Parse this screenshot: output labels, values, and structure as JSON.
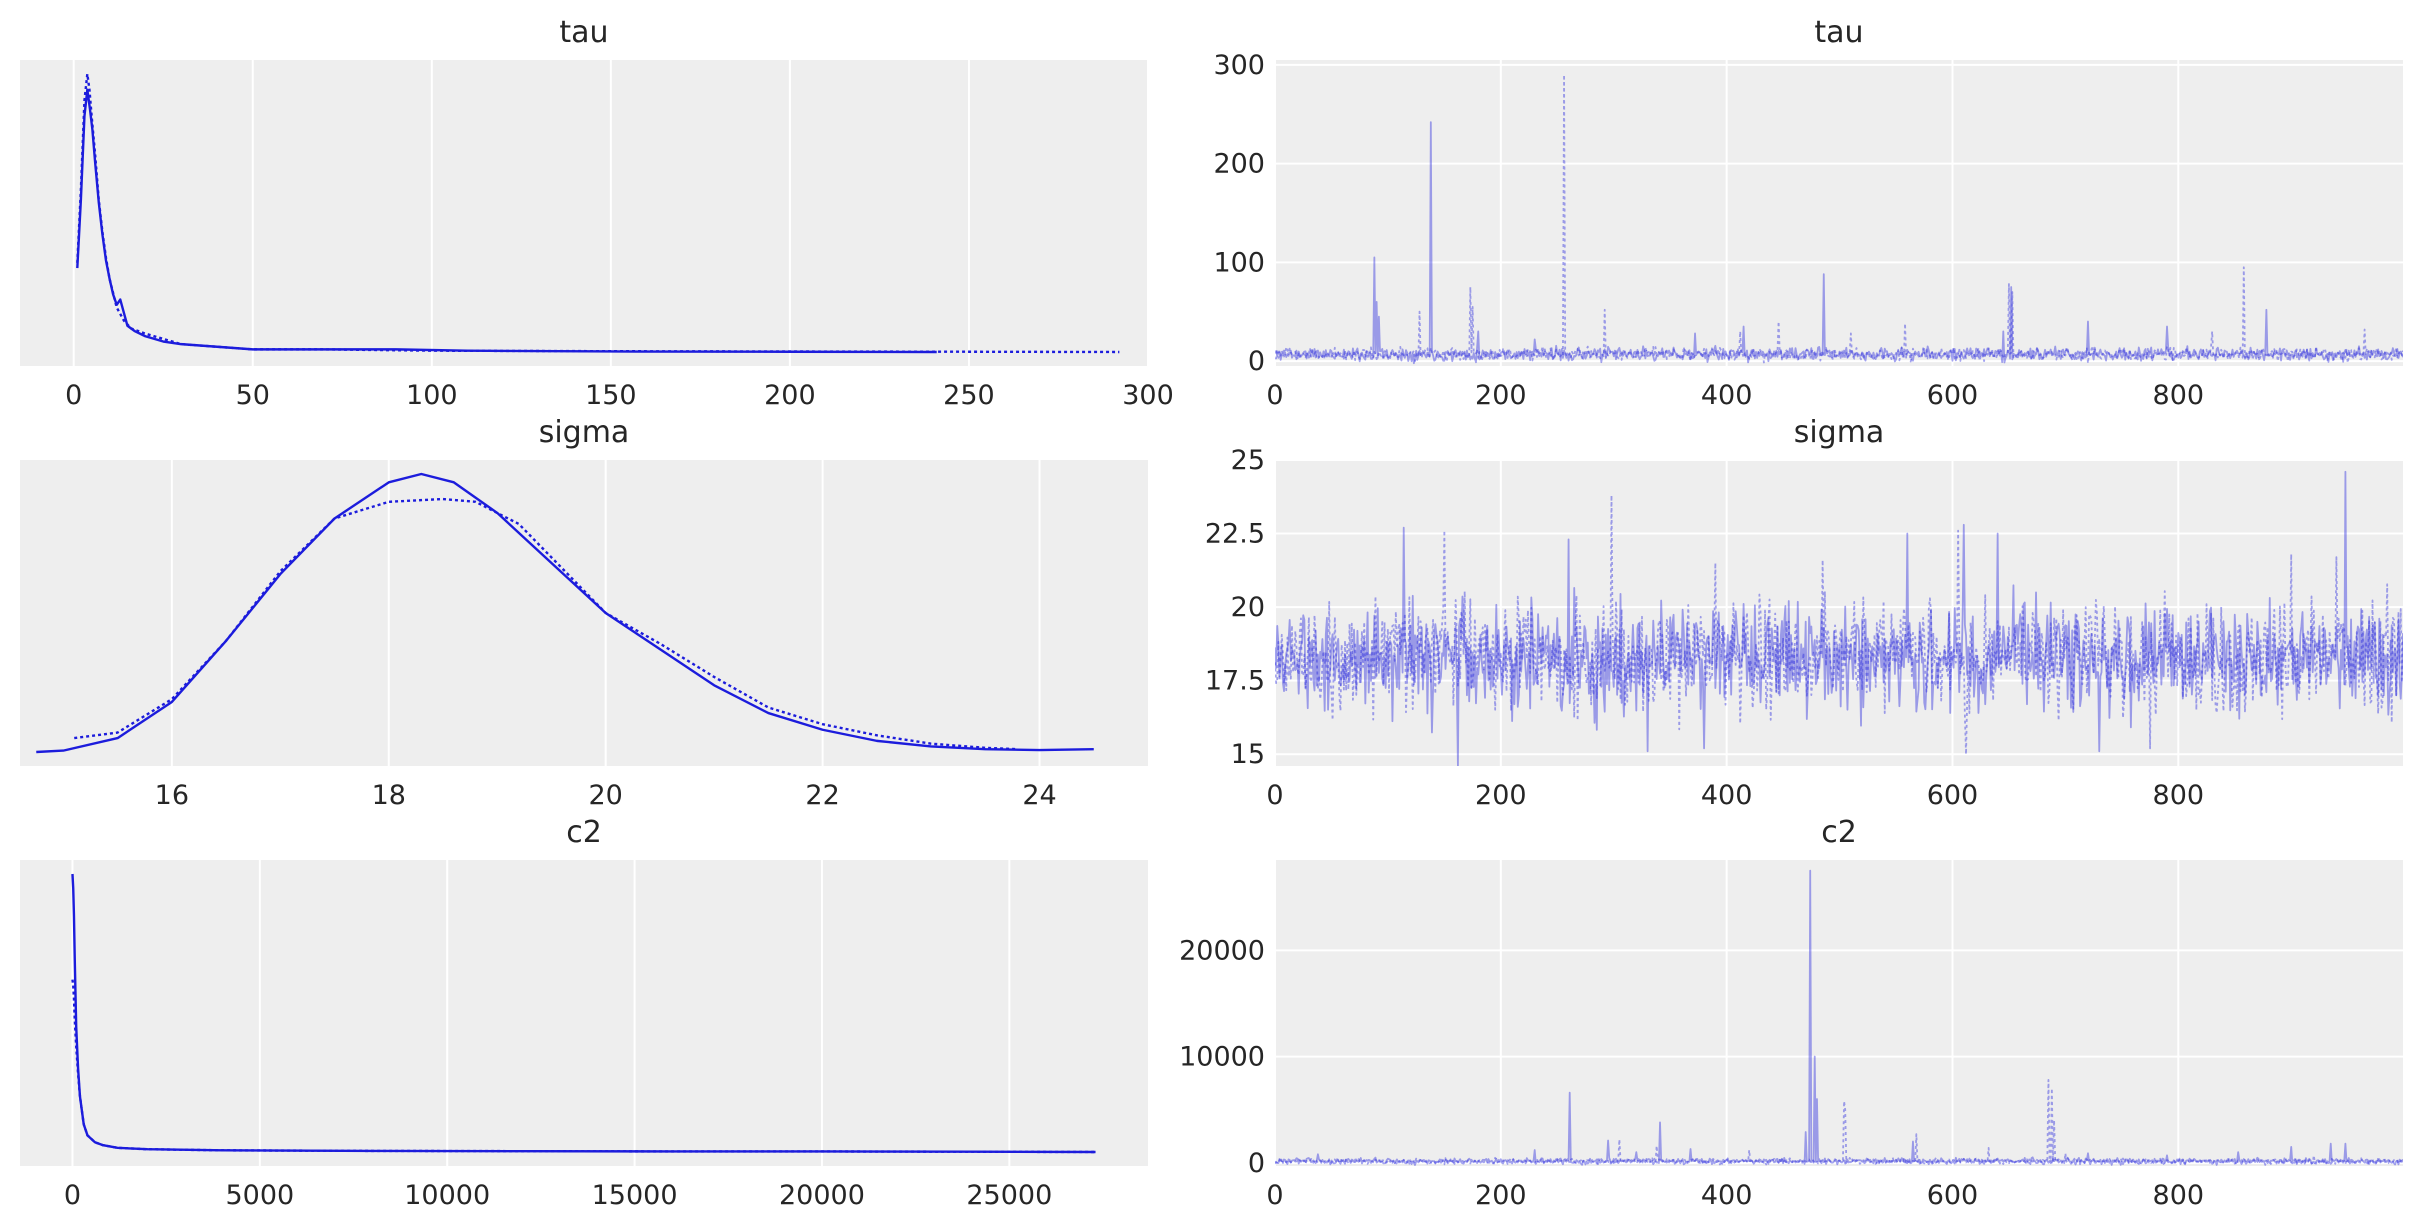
{
  "figure": {
    "type": "trace_plot",
    "color": "#1c1cdc",
    "trace_alpha": 0.4,
    "background": "#eeeeee"
  },
  "chart_data": [
    {
      "type": "line",
      "kind": "density",
      "title": "tau",
      "xlim": [
        -15,
        300
      ],
      "xticks": [
        0,
        50,
        100,
        150,
        200,
        250,
        300
      ],
      "yrange": [
        0,
        1
      ],
      "show_yticks": false,
      "grid": true,
      "series": [
        {
          "style": "solid",
          "x": [
            1,
            2,
            3,
            3.8,
            4.5,
            5.2,
            6,
            7,
            8,
            9,
            10,
            11,
            12,
            13,
            14,
            15,
            17,
            20,
            25,
            30,
            40,
            50,
            70,
            90,
            110,
            150,
            200,
            241
          ],
          "y": [
            0.32,
            0.58,
            0.9,
            1.0,
            0.93,
            0.85,
            0.72,
            0.57,
            0.45,
            0.35,
            0.28,
            0.22,
            0.18,
            0.2,
            0.15,
            0.1,
            0.08,
            0.06,
            0.04,
            0.03,
            0.02,
            0.01,
            0.01,
            0.01,
            0.005,
            0.002,
            0.001,
            0.0
          ]
        },
        {
          "style": "dotted",
          "x": [
            1,
            2,
            3,
            3.8,
            4.4,
            5,
            6,
            7,
            8,
            9,
            10,
            12,
            14,
            16,
            20,
            25,
            30,
            40,
            50,
            70,
            100,
            150,
            200,
            250,
            292
          ],
          "y": [
            0.34,
            0.62,
            0.96,
            1.06,
            1.0,
            0.9,
            0.75,
            0.58,
            0.46,
            0.36,
            0.28,
            0.17,
            0.12,
            0.09,
            0.07,
            0.05,
            0.03,
            0.02,
            0.01,
            0.01,
            0.005,
            0.003,
            0.002,
            0.001,
            0.0
          ]
        }
      ]
    },
    {
      "type": "line",
      "kind": "trace",
      "title": "tau",
      "xlim": [
        0,
        999
      ],
      "xticks": [
        0,
        200,
        400,
        600,
        800
      ],
      "ylim": [
        -5,
        305
      ],
      "yticks": [
        0,
        100,
        200,
        300
      ],
      "grid": true,
      "series": [
        {
          "style": "solid",
          "generator": {
            "base": 7,
            "noise": 5,
            "seed": 11,
            "spikes": [
              [
                88,
                105
              ],
              [
                90,
                60
              ],
              [
                92,
                45
              ],
              [
                138,
                242
              ],
              [
                180,
                30
              ],
              [
                230,
                22
              ],
              [
                372,
                28
              ],
              [
                415,
                35
              ],
              [
                486,
                88
              ],
              [
                645,
                30
              ],
              [
                652,
                75
              ],
              [
                720,
                40
              ],
              [
                790,
                35
              ],
              [
                878,
                52
              ],
              [
                960,
                15
              ]
            ]
          }
        },
        {
          "style": "dotted",
          "generator": {
            "base": 7,
            "noise": 5,
            "seed": 23,
            "spikes": [
              [
                128,
                50
              ],
              [
                173,
                75
              ],
              [
                175,
                55
              ],
              [
                256,
                290
              ],
              [
                292,
                52
              ],
              [
                412,
                30
              ],
              [
                446,
                40
              ],
              [
                510,
                28
              ],
              [
                558,
                38
              ],
              [
                650,
                78
              ],
              [
                653,
                70
              ],
              [
                858,
                95
              ],
              [
                830,
                30
              ],
              [
                965,
                32
              ]
            ]
          }
        }
      ]
    },
    {
      "type": "line",
      "kind": "density",
      "title": "sigma",
      "xlim": [
        14.6,
        25.0
      ],
      "xticks": [
        16,
        18,
        20,
        22,
        24
      ],
      "yrange": [
        0,
        1
      ],
      "show_yticks": false,
      "grid": true,
      "series": [
        {
          "style": "solid",
          "x": [
            14.75,
            15.0,
            15.5,
            16.0,
            16.5,
            17.0,
            17.5,
            18.0,
            18.3,
            18.6,
            19.0,
            19.5,
            20.0,
            20.5,
            21.0,
            21.5,
            22.0,
            22.5,
            23.0,
            23.5,
            24.0,
            24.5
          ],
          "y": [
            0.0,
            0.005,
            0.05,
            0.18,
            0.4,
            0.64,
            0.84,
            0.97,
            1.0,
            0.97,
            0.86,
            0.68,
            0.5,
            0.37,
            0.24,
            0.14,
            0.08,
            0.04,
            0.02,
            0.01,
            0.007,
            0.01
          ]
        },
        {
          "style": "dotted",
          "x": [
            15.1,
            15.5,
            16.0,
            16.5,
            17.0,
            17.5,
            18.0,
            18.5,
            18.8,
            19.2,
            19.6,
            20.0,
            20.5,
            21.0,
            21.5,
            22.0,
            22.5,
            23.0,
            23.5,
            23.8
          ],
          "y": [
            0.05,
            0.07,
            0.19,
            0.4,
            0.65,
            0.84,
            0.9,
            0.91,
            0.9,
            0.82,
            0.66,
            0.5,
            0.39,
            0.27,
            0.16,
            0.1,
            0.06,
            0.03,
            0.015,
            0.01
          ]
        }
      ]
    },
    {
      "type": "line",
      "kind": "trace",
      "title": "sigma",
      "xlim": [
        0,
        999
      ],
      "xticks": [
        0,
        200,
        400,
        600,
        800
      ],
      "ylim": [
        14.6,
        25.0
      ],
      "yticks": [
        15.0,
        17.5,
        20.0,
        22.5,
        25.0
      ],
      "grid": true,
      "series": [
        {
          "style": "solid",
          "generator": {
            "base": 18.3,
            "noise": 1.4,
            "seed": 5,
            "spikes": [
              [
                162,
                14.6
              ],
              [
                114,
                22.7
              ],
              [
                260,
                22.3
              ],
              [
                560,
                22.5
              ],
              [
                610,
                22.8
              ],
              [
                640,
                22.5
              ],
              [
                948,
                24.6
              ],
              [
                330,
                15.1
              ],
              [
                380,
                15.2
              ],
              [
                730,
                15.1
              ]
            ]
          }
        },
        {
          "style": "dotted",
          "generator": {
            "base": 18.3,
            "noise": 1.4,
            "seed": 17,
            "spikes": [
              [
                150,
                22.6
              ],
              [
                298,
                23.8
              ],
              [
                390,
                21.5
              ],
              [
                612,
                15.0
              ],
              [
                605,
                22.6
              ],
              [
                775,
                15.2
              ],
              [
                900,
                21.8
              ],
              [
                940,
                21.7
              ],
              [
                485,
                21.6
              ]
            ]
          }
        }
      ]
    },
    {
      "type": "line",
      "kind": "density",
      "title": "c2",
      "xlim": [
        -1400,
        28700
      ],
      "xticks": [
        0,
        5000,
        10000,
        15000,
        20000,
        25000
      ],
      "yrange": [
        0,
        1
      ],
      "show_yticks": false,
      "grid": true,
      "series": [
        {
          "style": "solid",
          "x": [
            0,
            20,
            40,
            60,
            100,
            150,
            200,
            300,
            400,
            600,
            800,
            1200,
            2000,
            4000,
            8000,
            12000,
            16000,
            20000,
            24000,
            27300
          ],
          "y": [
            1.0,
            0.95,
            0.85,
            0.7,
            0.45,
            0.3,
            0.2,
            0.1,
            0.06,
            0.035,
            0.025,
            0.015,
            0.01,
            0.006,
            0.004,
            0.003,
            0.002,
            0.002,
            0.001,
            0.0
          ]
        },
        {
          "style": "dotted",
          "x": [
            0,
            20,
            40,
            60,
            100,
            150,
            200,
            300,
            400,
            600,
            800,
            1200,
            2000,
            4000,
            8000,
            12000,
            16000,
            20000,
            24000,
            27300
          ],
          "y": [
            0.62,
            0.6,
            0.55,
            0.48,
            0.38,
            0.28,
            0.2,
            0.1,
            0.06,
            0.035,
            0.025,
            0.015,
            0.01,
            0.006,
            0.004,
            0.003,
            0.002,
            0.002,
            0.001,
            0.0
          ]
        }
      ]
    },
    {
      "type": "line",
      "kind": "trace",
      "title": "c2",
      "xlim": [
        0,
        999
      ],
      "xticks": [
        0,
        200,
        400,
        600,
        800
      ],
      "ylim": [
        -300,
        28500
      ],
      "yticks": [
        0,
        10000,
        20000
      ],
      "grid": true,
      "series": [
        {
          "style": "solid",
          "generator": {
            "base": 150,
            "noise": 200,
            "seed": 3,
            "spikes": [
              [
                38,
                800
              ],
              [
                230,
                1200
              ],
              [
                261,
                6600
              ],
              [
                295,
                2100
              ],
              [
                320,
                1000
              ],
              [
                341,
                3800
              ],
              [
                368,
                1300
              ],
              [
                470,
                2900
              ],
              [
                474,
                27500
              ],
              [
                478,
                10000
              ],
              [
                480,
                6000
              ],
              [
                565,
                2000
              ],
              [
                720,
                900
              ],
              [
                790,
                700
              ],
              [
                853,
                1000
              ],
              [
                900,
                1500
              ],
              [
                935,
                1800
              ],
              [
                948,
                1800
              ]
            ]
          }
        },
        {
          "style": "dotted",
          "generator": {
            "base": 150,
            "noise": 200,
            "seed": 29,
            "spikes": [
              [
                305,
                2200
              ],
              [
                338,
                1600
              ],
              [
                420,
                1200
              ],
              [
                504,
                5800
              ],
              [
                505,
                5000
              ],
              [
                568,
                2700
              ],
              [
                632,
                1400
              ],
              [
                685,
                7800
              ],
              [
                688,
                7000
              ],
              [
                690,
                4000
              ],
              [
                700,
                900
              ],
              [
                920,
                700
              ]
            ]
          }
        }
      ]
    }
  ]
}
